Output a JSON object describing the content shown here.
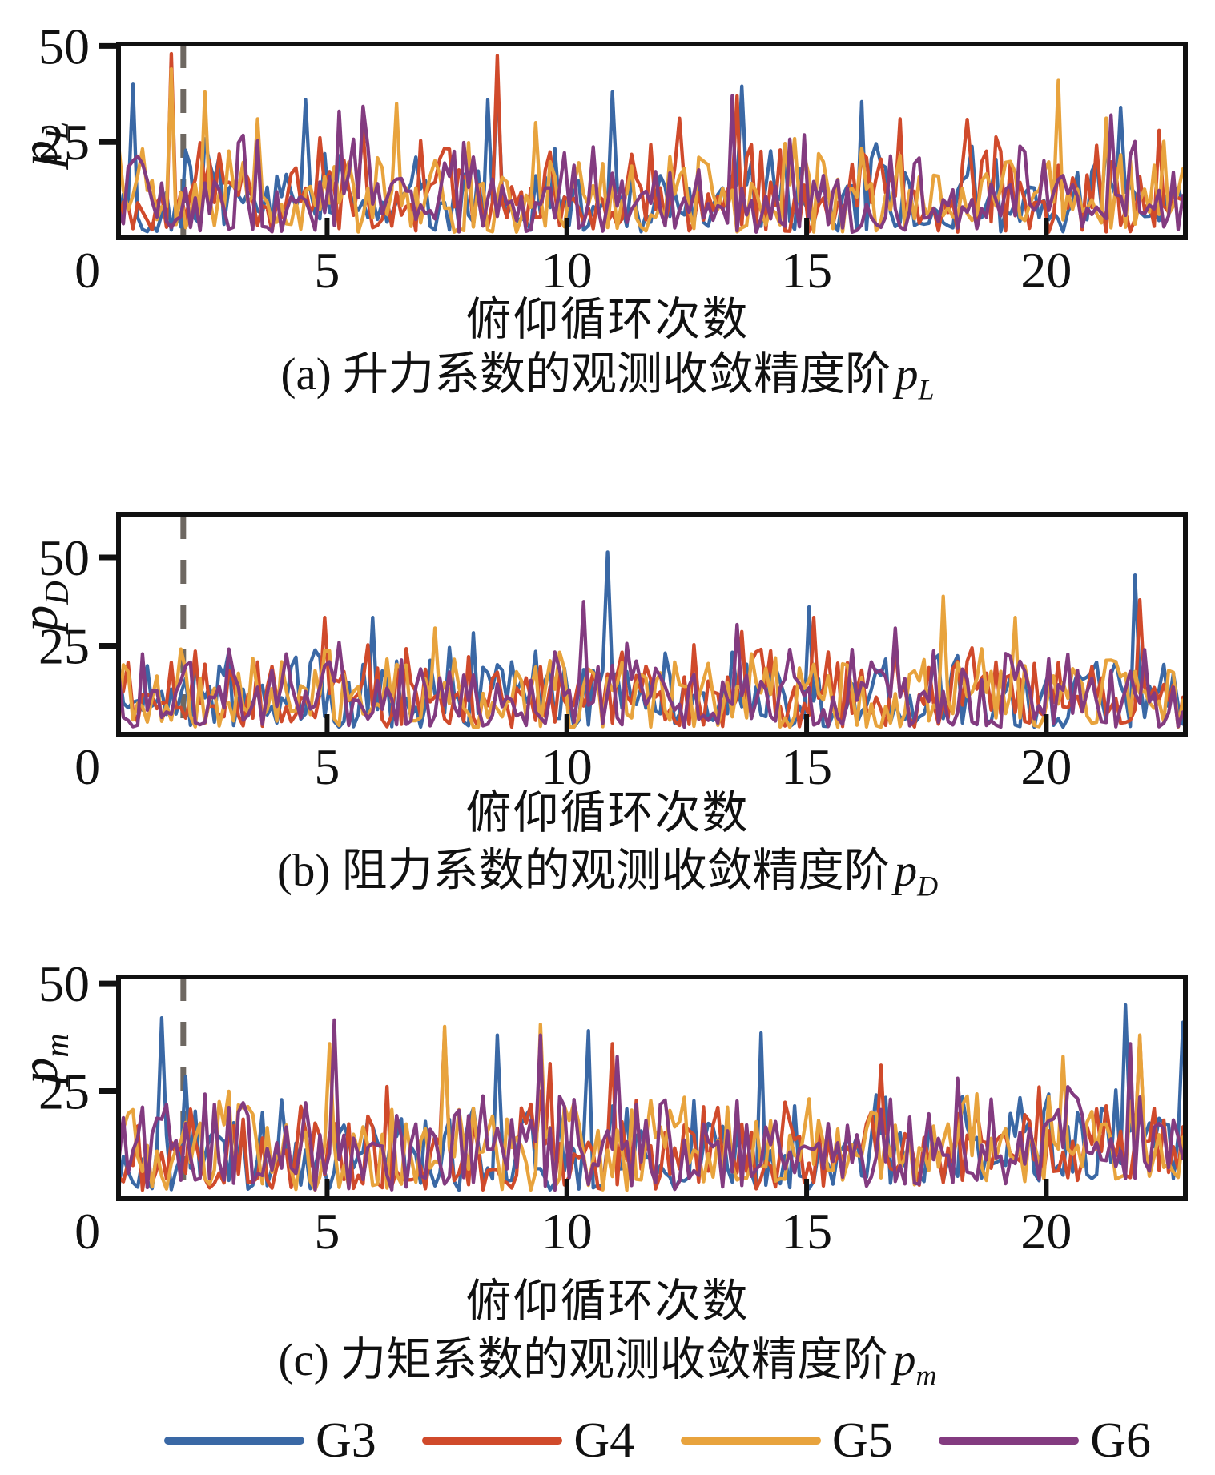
{
  "xlabel": "俯仰循环次数",
  "legend": {
    "items": [
      {
        "label": "G3",
        "color": "#3a68a5"
      },
      {
        "label": "G4",
        "color": "#d04a2b"
      },
      {
        "label": "G5",
        "color": "#e8a33d"
      },
      {
        "label": "G6",
        "color": "#833b80"
      }
    ]
  },
  "colors": {
    "axis": "#111111",
    "dashed_reference": "#6e6862",
    "background": "#ffffff"
  },
  "chart_data": [
    {
      "id": "a",
      "type": "line",
      "caption": {
        "prefix": "(a) 升力系数的观测收敛精度阶",
        "var": "p",
        "sub": "L"
      },
      "ylabel": {
        "var": "p",
        "sub": "L"
      },
      "xlabel": "俯仰循环次数",
      "x_ticks": [
        0,
        5,
        10,
        15,
        20
      ],
      "x_tick_labels": [
        "0",
        "5",
        "10",
        "15",
        "20"
      ],
      "y_ticks": [
        25,
        50
      ],
      "y_tick_labels": [
        "25",
        "50"
      ],
      "x_range": [
        0.65,
        22.9
      ],
      "y_range": [
        0,
        50.5
      ],
      "grid": false,
      "dashed_line_x": 2.0,
      "noise_model": {
        "dx": 0.1,
        "base": 1.5,
        "amp": 26,
        "env_amp": 0.55,
        "env_freq": 1.35,
        "spike_prob": 0.04,
        "spike_amp": 14,
        "clamp": 44,
        "trend_after": null,
        "trend_slope": 0
      },
      "series": [
        {
          "name": "G3",
          "color": "#3a68a5",
          "seed": 101,
          "spikes": [
            [
              0.9,
              40
            ],
            [
              4.6,
              36
            ],
            [
              8.3,
              36
            ],
            [
              8.6,
              42
            ],
            [
              11.0,
              38
            ],
            [
              13.7,
              39.5
            ],
            [
              16.1,
              35.5
            ],
            [
              21.5,
              34
            ]
          ]
        },
        {
          "name": "G4",
          "color": "#d04a2b",
          "seed": 202,
          "spikes": [
            [
              1.75,
              48
            ],
            [
              8.6,
              47.5
            ],
            [
              13.6,
              37
            ],
            [
              16.9,
              31
            ],
            [
              22.3,
              28
            ]
          ]
        },
        {
          "name": "G5",
          "color": "#e8a33d",
          "seed": 303,
          "spikes": [
            [
              1.8,
              44
            ],
            [
              2.4,
              38
            ],
            [
              3.5,
              31
            ],
            [
              6.4,
              35
            ],
            [
              9.3,
              30
            ],
            [
              20.2,
              41
            ],
            [
              22.9,
              34
            ]
          ]
        },
        {
          "name": "G6",
          "color": "#833b80",
          "seed": 404,
          "spikes": [
            [
              5.3,
              33
            ],
            [
              13.4,
              37
            ],
            [
              21.3,
              32
            ]
          ]
        }
      ]
    },
    {
      "id": "b",
      "type": "line",
      "caption": {
        "prefix": "(b) 阻力系数的观测收敛精度阶",
        "var": "p",
        "sub": "D"
      },
      "ylabel": {
        "var": "p",
        "sub": "D"
      },
      "xlabel": "俯仰循环次数",
      "x_ticks": [
        0,
        5,
        10,
        15,
        20
      ],
      "x_tick_labels": [
        "0",
        "5",
        "10",
        "15",
        "20"
      ],
      "y_ticks": [
        25,
        50
      ],
      "y_tick_labels": [
        "25",
        "50"
      ],
      "x_range": [
        0.65,
        22.9
      ],
      "y_range": [
        0,
        62
      ],
      "grid": false,
      "dashed_line_x": 2.0,
      "noise_model": {
        "dx": 0.1,
        "base": 2,
        "amp": 23,
        "env_amp": 0.25,
        "env_freq": 2.1,
        "spike_prob": 0.05,
        "spike_amp": 9,
        "clamp": 33,
        "trend_after": null,
        "trend_slope": 0
      },
      "series": [
        {
          "name": "G3",
          "color": "#3a68a5",
          "seed": 111,
          "spikes": [
            [
              10.8,
              51.5
            ],
            [
              21.8,
              45
            ],
            [
              15.1,
              36
            ],
            [
              5.9,
              33
            ]
          ]
        },
        {
          "name": "G4",
          "color": "#d04a2b",
          "seed": 212,
          "spikes": [
            [
              5.0,
              33
            ],
            [
              13.7,
              29
            ],
            [
              15.2,
              33
            ],
            [
              21.9,
              38
            ]
          ]
        },
        {
          "name": "G5",
          "color": "#e8a33d",
          "seed": 313,
          "spikes": [
            [
              7.3,
              30
            ],
            [
              17.8,
              39
            ],
            [
              19.3,
              33
            ],
            [
              22.9,
              37
            ]
          ]
        },
        {
          "name": "G6",
          "color": "#833b80",
          "seed": 414,
          "spikes": [
            [
              10.3,
              37.5
            ],
            [
              13.6,
              31
            ],
            [
              16.8,
              30
            ]
          ]
        }
      ]
    },
    {
      "id": "c",
      "type": "line",
      "caption": {
        "prefix": "(c) 力矩系数的观测收敛精度阶",
        "var": "p",
        "sub": "m"
      },
      "ylabel": {
        "var": "p",
        "sub": "m"
      },
      "xlabel": "俯仰循环次数",
      "x_ticks": [
        0,
        5,
        10,
        15,
        20
      ],
      "x_tick_labels": [
        "0",
        "5",
        "10",
        "15",
        "20"
      ],
      "y_ticks": [
        25,
        50
      ],
      "y_tick_labels": [
        "25",
        "50"
      ],
      "x_range": [
        0.65,
        22.9
      ],
      "y_range": [
        0,
        51.5
      ],
      "grid": false,
      "dashed_line_x": 2.0,
      "noise_model": {
        "dx": 0.1,
        "base": 2,
        "amp": 23,
        "env_amp": 0.3,
        "env_freq": 1.8,
        "spike_prob": 0.05,
        "spike_amp": 11,
        "clamp": 36,
        "trend_after": 15,
        "trend_slope": 0.35
      },
      "series": [
        {
          "name": "G3",
          "color": "#3a68a5",
          "seed": 121,
          "spikes": [
            [
              1.5,
              42
            ],
            [
              8.6,
              38
            ],
            [
              10.5,
              39
            ],
            [
              14.0,
              38.5
            ],
            [
              21.6,
              45
            ],
            [
              22.8,
              41
            ]
          ]
        },
        {
          "name": "G4",
          "color": "#d04a2b",
          "seed": 222,
          "spikes": [
            [
              7.4,
              39
            ],
            [
              11.0,
              36
            ],
            [
              16.5,
              31
            ],
            [
              21.9,
              37.5
            ]
          ]
        },
        {
          "name": "G5",
          "color": "#e8a33d",
          "seed": 323,
          "spikes": [
            [
              5.1,
              36
            ],
            [
              7.4,
              40
            ],
            [
              9.5,
              40.5
            ],
            [
              20.3,
              33
            ],
            [
              21.9,
              38
            ]
          ]
        },
        {
          "name": "G6",
          "color": "#833b80",
          "seed": 424,
          "spikes": [
            [
              5.15,
              41.5
            ],
            [
              9.5,
              38
            ],
            [
              11.1,
              33
            ],
            [
              21.7,
              36
            ]
          ]
        }
      ]
    }
  ]
}
